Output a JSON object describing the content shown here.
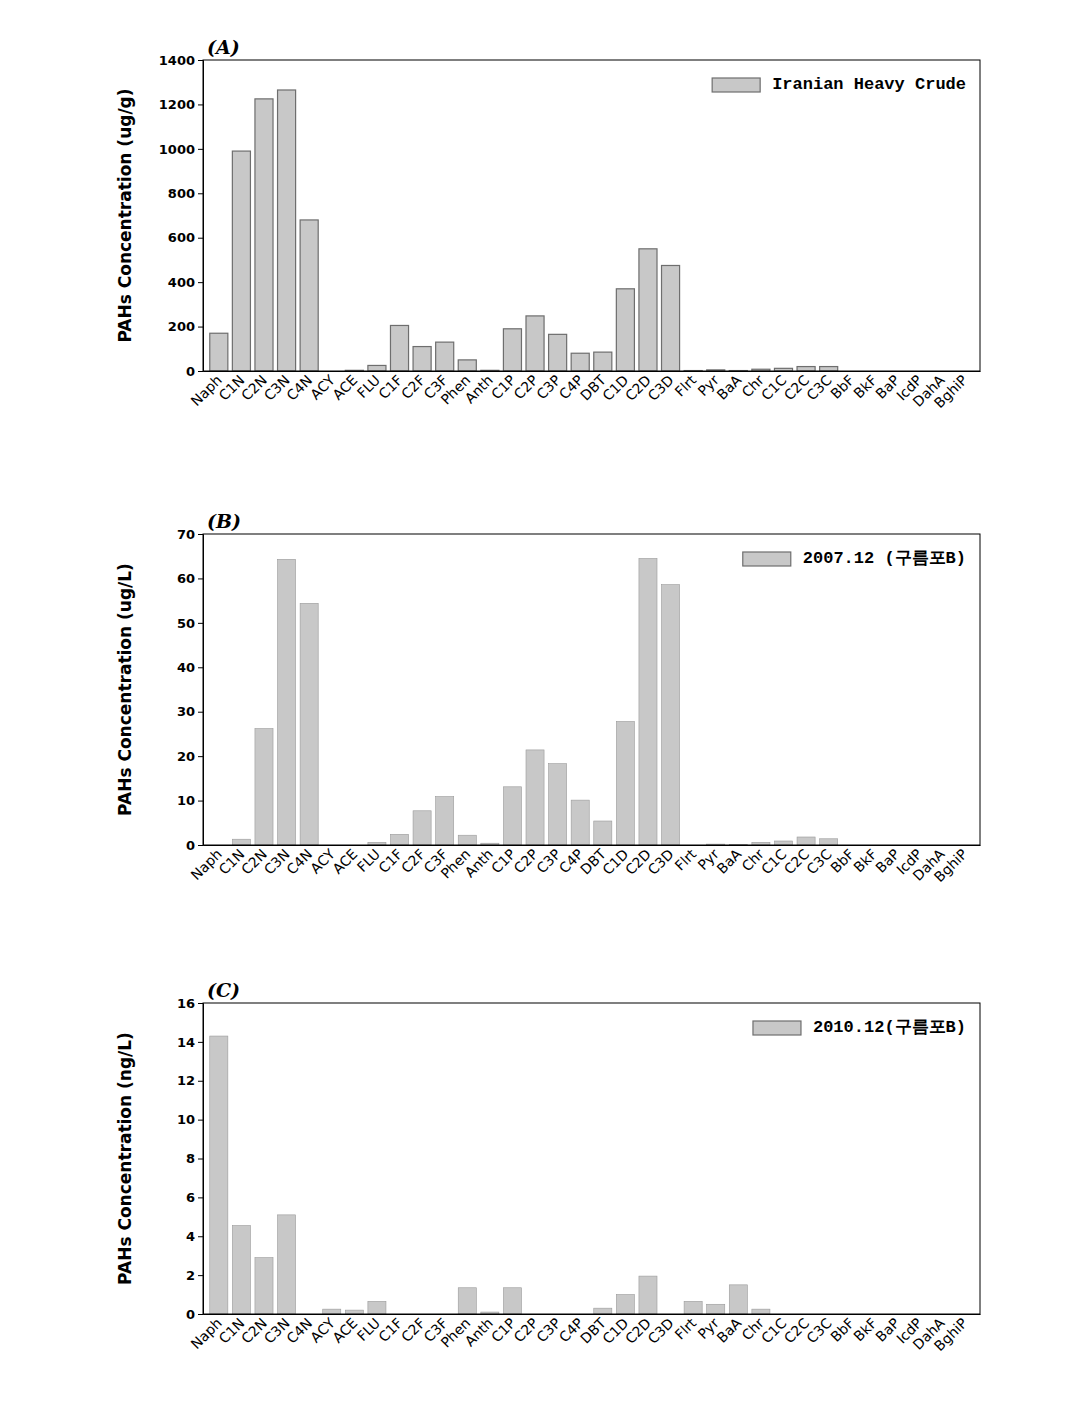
{
  "chart_data": [
    {
      "type": "bar",
      "title": "(A)",
      "y_label": "PAHs Concentration (ug/g)",
      "categories": [
        "Naph",
        "C1N",
        "C2N",
        "C3N",
        "C4N",
        "ACY",
        "ACE",
        "FLU",
        "C1F",
        "C2F",
        "C3F",
        "Phen",
        "Anth",
        "C1P",
        "C2P",
        "C3P",
        "C4P",
        "DBT",
        "C1D",
        "C2D",
        "C3D",
        "Flrt",
        "Pyr",
        "BaA",
        "Chr",
        "C1C",
        "C2C",
        "C3C",
        "BbF",
        "BkF",
        "BaP",
        "IcdP",
        "DahA",
        "BghiP"
      ],
      "series": [
        {
          "name": "Iranian Heavy Crude",
          "color": "#c8c8c8",
          "values": [
            170,
            990,
            1225,
            1265,
            680,
            0,
            3,
            25,
            205,
            110,
            130,
            50,
            3,
            190,
            248,
            165,
            80,
            85,
            370,
            550,
            475,
            2,
            5,
            2,
            8,
            12,
            20,
            20,
            0,
            0,
            0,
            0,
            0,
            0
          ]
        }
      ],
      "ylim": [
        0,
        1400
      ],
      "yticks": [
        0,
        200,
        400,
        600,
        800,
        1000,
        1200,
        1400
      ],
      "legend": "upper right"
    },
    {
      "type": "bar",
      "title": "(B)",
      "y_label": "PAHs Concentration (ug/L)",
      "categories": [
        "Naph",
        "C1N",
        "C2N",
        "C3N",
        "C4N",
        "ACY",
        "ACE",
        "FLU",
        "C1F",
        "C2F",
        "C3F",
        "Phen",
        "Anth",
        "C1P",
        "C2P",
        "C3P",
        "C4P",
        "DBT",
        "C1D",
        "C2D",
        "C3D",
        "Flrt",
        "Pyr",
        "BaA",
        "Chr",
        "C1C",
        "C2C",
        "C3C",
        "BbF",
        "BkF",
        "BaP",
        "IcdP",
        "DahA",
        "BghiP"
      ],
      "series": [
        {
          "name": "2007.12 (구름포B)",
          "color": "#c8c8c8",
          "values": [
            0,
            1.3,
            26.2,
            64.3,
            54.4,
            0,
            0,
            0.6,
            2.4,
            7.7,
            10.9,
            2.2,
            0.4,
            13.1,
            21.4,
            18.3,
            10.1,
            5.4,
            27.8,
            64.5,
            58.6,
            0,
            0.2,
            0.1,
            0.6,
            0.9,
            1.8,
            1.4,
            0,
            0,
            0,
            0,
            0,
            0
          ]
        }
      ],
      "ylim": [
        0,
        70
      ],
      "yticks": [
        0,
        10,
        20,
        30,
        40,
        50,
        60,
        70
      ],
      "legend": "upper right"
    },
    {
      "type": "bar",
      "title": "(C)",
      "y_label": "PAHs Concentration (ng/L)",
      "categories": [
        "Naph",
        "C1N",
        "C2N",
        "C3N",
        "C4N",
        "ACY",
        "ACE",
        "FLU",
        "C1F",
        "C2F",
        "C3F",
        "Phen",
        "Anth",
        "C1P",
        "C2P",
        "C3P",
        "C4P",
        "DBT",
        "C1D",
        "C2D",
        "C3D",
        "Flrt",
        "Pyr",
        "BaA",
        "Chr",
        "C1C",
        "C2C",
        "C3C",
        "BbF",
        "BkF",
        "BaP",
        "IcdP",
        "DahA",
        "BghiP"
      ],
      "series": [
        {
          "name": "2010.12(구름포B)",
          "color": "#c8c8c8",
          "values": [
            14.3,
            4.55,
            2.9,
            5.1,
            0,
            0.25,
            0.2,
            0.65,
            0,
            0,
            0,
            1.35,
            0.1,
            1.35,
            0,
            0,
            0,
            0.3,
            1.0,
            1.95,
            0,
            0.65,
            0.5,
            1.5,
            0.25,
            0,
            0,
            0,
            0,
            0,
            0,
            0,
            0,
            0
          ]
        }
      ],
      "ylim": [
        0,
        16
      ],
      "yticks": [
        0,
        2,
        4,
        6,
        8,
        10,
        12,
        14,
        16
      ],
      "legend": "upper right"
    }
  ]
}
